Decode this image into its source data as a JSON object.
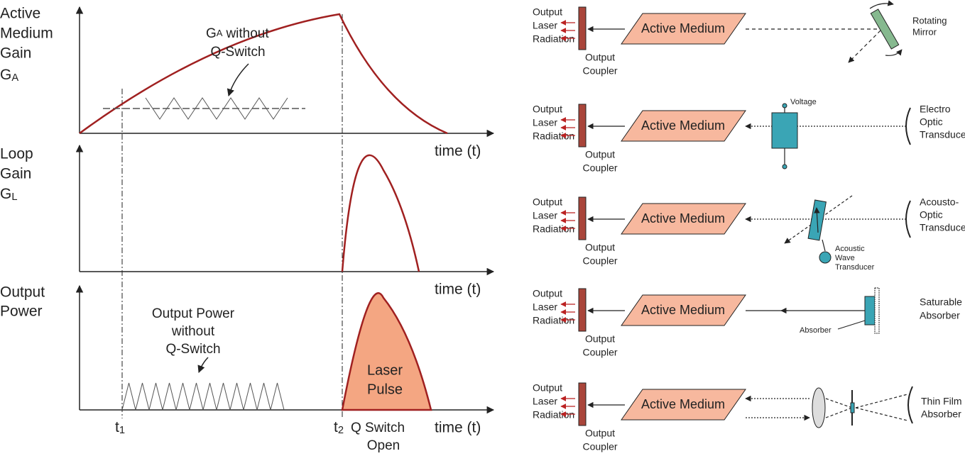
{
  "graphs": {
    "gain_label": [
      "Active",
      "Medium",
      "Gain"
    ],
    "gain_symbol": {
      "main": "G",
      "sub": "A"
    },
    "gain_annotation": {
      "symbol": {
        "main": "G",
        "sub": "A"
      },
      "text": "without",
      "line2": "Q-Switch"
    },
    "loop_label": [
      "Loop",
      "Gain"
    ],
    "loop_symbol": {
      "main": "G",
      "sub": "L"
    },
    "power_label": [
      "Output",
      "Power"
    ],
    "power_annotation": [
      "Output Power",
      "without",
      "Q-Switch"
    ],
    "pulse_label": [
      "Laser",
      "Pulse"
    ],
    "time_labels": [
      "time (t)",
      "time (t)",
      "time (t)"
    ],
    "t1": {
      "main": "t",
      "sub": "1"
    },
    "t2": {
      "main": "t",
      "sub": "2"
    },
    "switch_label": [
      "Q Switch",
      "Open"
    ]
  },
  "setups": [
    {
      "output_label": [
        "Output",
        "Laser",
        "Radiation"
      ],
      "coupler_label": [
        "Output",
        "Coupler"
      ],
      "medium": "Active Medium",
      "device_label": [
        "Rotating",
        "Mirror"
      ]
    },
    {
      "output_label": [
        "Output",
        "Laser",
        "Radiation"
      ],
      "coupler_label": [
        "Output",
        "Coupler"
      ],
      "medium": "Active Medium",
      "device_label": [
        "Electro",
        "Optic",
        "Transducer"
      ],
      "extra_label": [
        "Voltage"
      ]
    },
    {
      "output_label": [
        "Output",
        "Laser",
        "Radiation"
      ],
      "coupler_label": [
        "Output",
        "Coupler"
      ],
      "medium": "Active Medium",
      "device_label": [
        "Acousto-",
        "Optic",
        "Transducer"
      ],
      "extra_label": [
        "Acoustic",
        "Wave",
        "Transducer"
      ]
    },
    {
      "output_label": [
        "Output",
        "Laser",
        "Radiation"
      ],
      "coupler_label": [
        "Output",
        "Coupler"
      ],
      "medium": "Active Medium",
      "device_label": [
        "Saturable",
        "Absorber"
      ],
      "extra_label": [
        "Absorber"
      ]
    },
    {
      "output_label": [
        "Output",
        "Laser",
        "Radiation"
      ],
      "coupler_label": [
        "Output",
        "Coupler"
      ],
      "medium": "Active Medium",
      "device_label": [
        "Thin Film",
        "Absorber"
      ]
    }
  ]
}
